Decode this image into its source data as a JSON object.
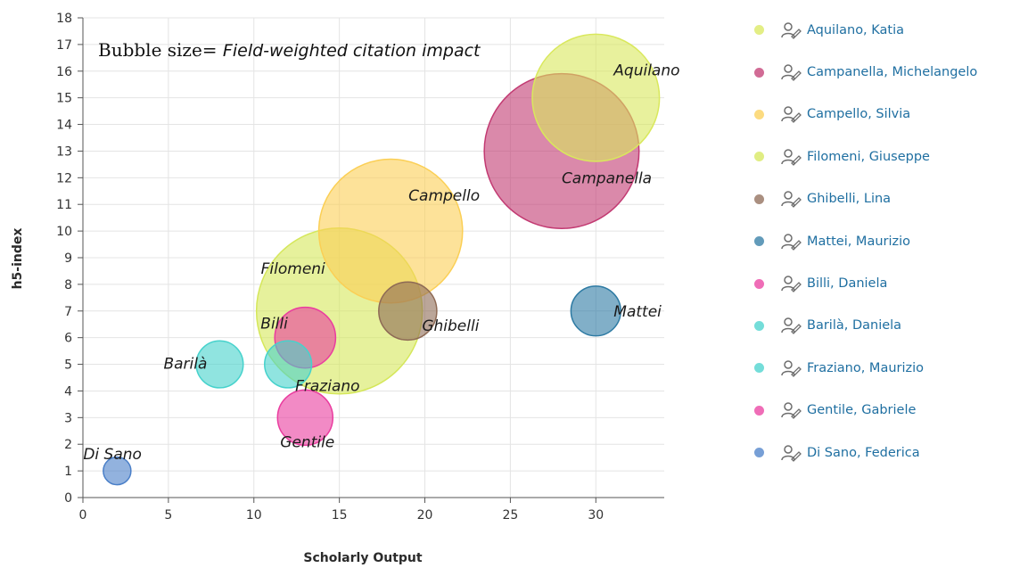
{
  "chart_data": {
    "type": "scatter",
    "subtype": "bubble",
    "xlabel": "Scholarly Output",
    "ylabel": "h5-index",
    "xlim": [
      0,
      34
    ],
    "ylim": [
      0,
      18
    ],
    "xticks": [
      0,
      5,
      10,
      15,
      20,
      25,
      30
    ],
    "yticks": [
      0,
      1,
      2,
      3,
      4,
      5,
      6,
      7,
      8,
      9,
      10,
      11,
      12,
      13,
      14,
      15,
      16,
      17,
      18
    ],
    "grid": true,
    "legend_position": "right",
    "size_note": {
      "prefix": "Bubble size= ",
      "metric": "Field-weighted citation impact"
    },
    "series": [
      {
        "name": "Aquilano, Katia",
        "label": "Aquilano",
        "x": 30,
        "y": 15,
        "size": 2.3,
        "color": "#d9e85c"
      },
      {
        "name": "Campanella, Michelangelo",
        "label": "Campanella",
        "x": 28,
        "y": 13,
        "size": 2.8,
        "color": "#c23a72"
      },
      {
        "name": "Campello, Silvia",
        "label": "Campello",
        "x": 18,
        "y": 10,
        "size": 2.6,
        "color": "#fbcf55"
      },
      {
        "name": "Filomeni, Giuseppe",
        "label": "Filomeni",
        "x": 15,
        "y": 7,
        "size": 3.0,
        "color": "#d5e75a"
      },
      {
        "name": "Ghibelli, Lina",
        "label": "Ghibelli",
        "x": 19,
        "y": 7,
        "size": 1.05,
        "color": "#8e6a55"
      },
      {
        "name": "Mattei, Maurizio",
        "label": "Mattei",
        "x": 30,
        "y": 7,
        "size": 0.9,
        "color": "#2d7aa3"
      },
      {
        "name": "Billi, Daniela",
        "label": "Billi",
        "x": 13,
        "y": 6,
        "size": 1.1,
        "color": "#ea3c9f"
      },
      {
        "name": "Barilà, Daniela",
        "label": "Barilà",
        "x": 8,
        "y": 5,
        "size": 0.85,
        "color": "#46d2cc"
      },
      {
        "name": "Fraziano, Maurizio",
        "label": "Fraziano",
        "x": 12,
        "y": 5,
        "size": 0.85,
        "color": "#46d2cc"
      },
      {
        "name": "Gentile, Gabriele",
        "label": "Gentile",
        "x": 13,
        "y": 3,
        "size": 1.0,
        "color": "#ea3c9f"
      },
      {
        "name": "Di Sano, Federica",
        "label": "Di Sano",
        "x": 2,
        "y": 1,
        "size": 0.5,
        "color": "#4a7fc8"
      }
    ]
  },
  "legend": {
    "items": [
      {
        "label": "Aquilano, Katia",
        "color": "#d9e85c",
        "icon": "researcher-icon"
      },
      {
        "label": "Campanella, Michelangelo",
        "color": "#c23a72",
        "icon": "researcher-icon"
      },
      {
        "label": "Campello, Silvia",
        "color": "#fbcf55",
        "icon": "researcher-icon"
      },
      {
        "label": "Filomeni, Giuseppe",
        "color": "#d5e75a",
        "icon": "researcher-icon"
      },
      {
        "label": "Ghibelli, Lina",
        "color": "#8e6a55",
        "icon": "researcher-icon"
      },
      {
        "label": "Mattei, Maurizio",
        "color": "#2d7aa3",
        "icon": "researcher-icon"
      },
      {
        "label": "Billi, Daniela",
        "color": "#ea3c9f",
        "icon": "researcher-icon"
      },
      {
        "label": "Barilà, Daniela",
        "color": "#46d2cc",
        "icon": "researcher-icon"
      },
      {
        "label": "Fraziano, Maurizio",
        "color": "#46d2cc",
        "icon": "researcher-icon"
      },
      {
        "label": "Gentile, Gabriele",
        "color": "#ea3c9f",
        "icon": "researcher-icon"
      },
      {
        "label": "Di Sano, Federica",
        "color": "#4a7fc8",
        "icon": "researcher-icon"
      }
    ]
  }
}
